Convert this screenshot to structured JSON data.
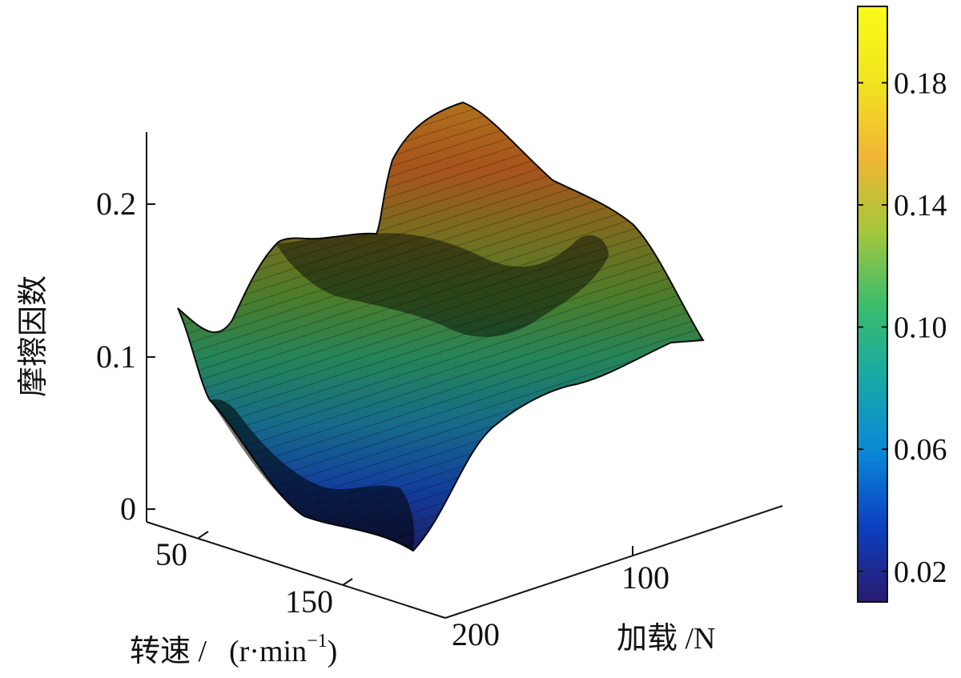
{
  "chart_data": {
    "type": "surface",
    "zlabel": "摩擦因数",
    "xlabel": "转速 /",
    "xlabel_unit_main": "(r·min",
    "xlabel_unit_exp": "−1",
    "xlabel_unit_close": ")",
    "ylabel": "加载 /N",
    "z_ticks": [
      "0",
      "0.1",
      "0.2"
    ],
    "x_ticks": [
      "50",
      "150"
    ],
    "y_ticks": [
      "100",
      "200"
    ],
    "zlim": [
      0,
      0.24
    ],
    "colorbar": {
      "range": [
        0.01,
        0.205
      ],
      "ticks": [
        "0.02",
        "0.06",
        "0.10",
        "0.14",
        "0.18"
      ],
      "tick_values": [
        0.02,
        0.06,
        0.1,
        0.14,
        0.18
      ],
      "colormap": [
        "#2a1a6e",
        "#0b3fc0",
        "#0a87d8",
        "#17a9a6",
        "#3bbd6b",
        "#a8c63a",
        "#f2b634",
        "#f0e51e",
        "#fbfa18"
      ]
    },
    "surface": {
      "front_edge_z": [
        0.07,
        0.06,
        0.045,
        0.03,
        0.02,
        0.012,
        0.008,
        0.006,
        0.005,
        0.006,
        0.01,
        0.005,
        0.002
      ],
      "back_edge_z": [
        0.13,
        0.175,
        0.18,
        0.178,
        0.18,
        0.185,
        0.175,
        0.19,
        0.235,
        0.23,
        0.2,
        0.18,
        0.11
      ]
    }
  }
}
